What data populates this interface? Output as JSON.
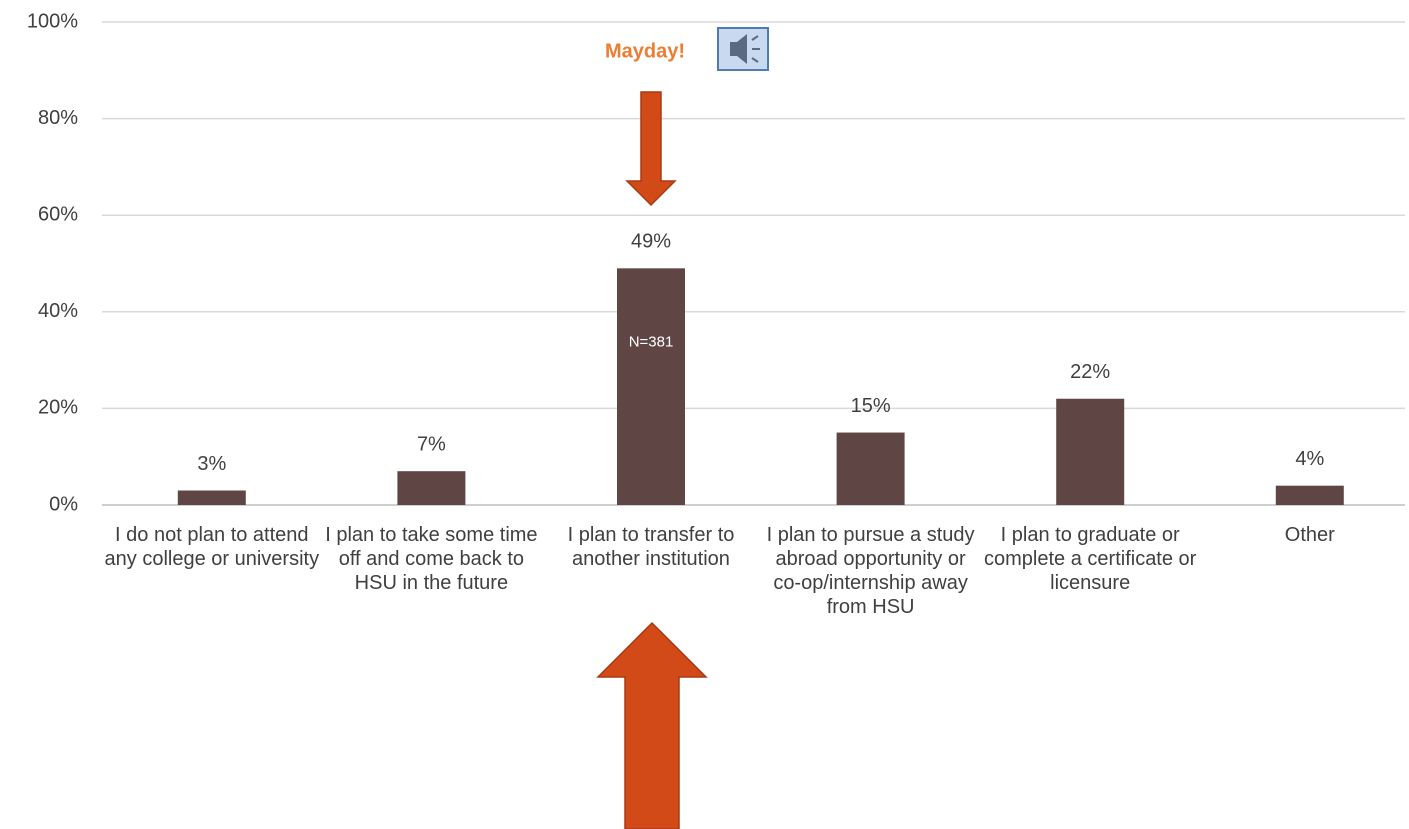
{
  "chart_data": {
    "type": "bar",
    "categories": [
      "I do not plan to attend any college or university",
      "I plan to take some time off and come back to HSU in the future",
      "I plan to transfer to another institution",
      "I plan to pursue a study abroad opportunity or co-op/internship away from HSU",
      "I plan to graduate or complete a certificate or licensure",
      "Other"
    ],
    "values": [
      3,
      7,
      49,
      15,
      22,
      4
    ],
    "value_labels": [
      "3%",
      "7%",
      "49%",
      "15%",
      "22%",
      "4%"
    ],
    "color": "#604545",
    "ylim": [
      0,
      100
    ],
    "yticks": [
      {
        "value": 0,
        "label": "0%"
      },
      {
        "value": 20,
        "label": "20%"
      },
      {
        "value": 40,
        "label": "40%"
      },
      {
        "value": 60,
        "label": "60%"
      },
      {
        "value": 80,
        "label": "80%"
      },
      {
        "value": 100,
        "label": "100%"
      }
    ],
    "grid": true,
    "annotations": [
      "Mayday!",
      "N=381"
    ]
  }
}
